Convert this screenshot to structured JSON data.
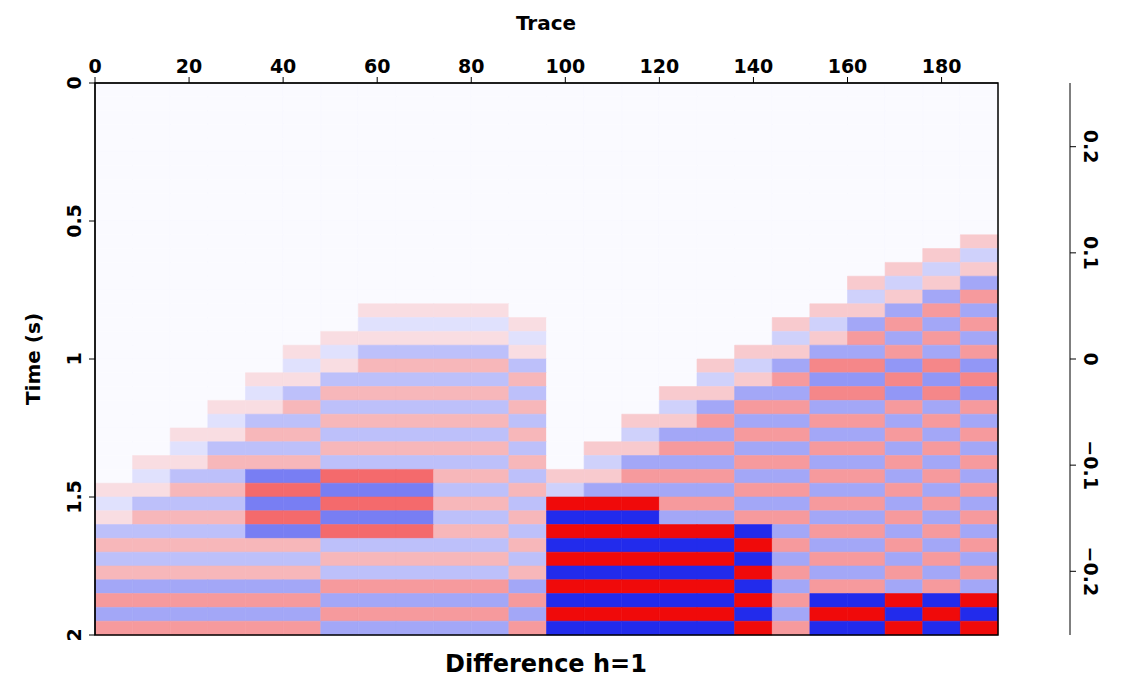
{
  "chart_data": {
    "type": "heatmap",
    "title": "Difference h=1",
    "xlabel": "Trace",
    "ylabel": "Time (s)",
    "xlim": [
      0,
      192
    ],
    "ylim": [
      0,
      2
    ],
    "xticks": [
      0,
      20,
      40,
      60,
      80,
      100,
      120,
      140,
      160,
      180
    ],
    "yticks": [
      0,
      0.5,
      1,
      1.5,
      2
    ],
    "x_bins": [
      0,
      8,
      16,
      24,
      32,
      40,
      48,
      56,
      64,
      72,
      80,
      88,
      96,
      104,
      112,
      120,
      128,
      136,
      144,
      152,
      160,
      168,
      176,
      184,
      192
    ],
    "y_bins": [
      0,
      0.05,
      0.1,
      0.15,
      0.2,
      0.25,
      0.3,
      0.35,
      0.4,
      0.45,
      0.5,
      0.55,
      0.6,
      0.65,
      0.7,
      0.75,
      0.8,
      0.85,
      0.9,
      0.95,
      1,
      1.05,
      1.1,
      1.15,
      1.2,
      1.25,
      1.3,
      1.35,
      1.4,
      1.45,
      1.5,
      1.55,
      1.6,
      1.65,
      1.7,
      1.75,
      1.8,
      1.85,
      1.9,
      1.95,
      2
    ],
    "cells": [
      [
        0,
        0,
        0,
        0,
        0,
        0,
        0,
        0,
        0,
        0,
        0,
        0,
        0,
        0,
        0,
        0,
        0,
        0,
        0,
        0,
        0,
        0,
        0,
        0
      ],
      [
        0,
        0,
        0,
        0,
        0,
        0,
        0,
        0,
        0,
        0,
        0,
        0,
        0,
        0,
        0,
        0,
        0,
        0,
        0,
        0,
        0,
        0,
        0,
        0
      ],
      [
        0,
        0,
        0,
        0,
        0,
        0,
        0,
        0,
        0,
        0,
        0,
        0,
        0,
        0,
        0,
        0,
        0,
        0,
        0,
        0,
        0,
        0,
        0,
        0
      ],
      [
        0,
        0,
        0,
        0,
        0,
        0,
        0,
        0,
        0,
        0,
        0,
        0,
        0,
        0,
        0,
        0,
        0,
        0,
        0,
        0,
        0,
        0,
        0,
        0
      ],
      [
        0,
        0,
        0,
        0,
        0,
        0,
        0,
        0,
        0,
        0,
        0,
        0,
        0,
        0,
        0,
        0,
        0,
        0,
        0,
        0,
        0,
        0,
        0,
        0
      ],
      [
        0,
        0,
        0,
        0,
        0,
        0,
        0,
        0,
        0,
        0,
        0,
        0,
        0,
        0,
        0,
        0,
        0,
        0,
        0,
        0,
        0,
        0,
        0,
        0
      ],
      [
        0,
        0,
        0,
        0,
        0,
        0,
        0,
        0,
        0,
        0,
        0,
        0,
        0,
        0,
        0,
        0,
        0,
        0,
        0,
        0,
        0,
        0,
        0,
        0
      ],
      [
        0,
        0,
        0,
        0,
        0,
        0,
        0,
        0,
        0,
        0,
        0,
        0,
        0,
        0,
        0,
        0,
        0,
        0,
        0,
        0,
        0,
        0,
        0,
        0
      ],
      [
        0,
        0,
        0,
        0,
        0,
        0,
        0,
        0,
        0,
        0,
        0,
        0,
        0,
        0,
        0,
        0,
        0,
        0,
        0,
        0,
        0,
        0,
        0,
        0
      ],
      [
        0,
        0,
        0,
        0,
        0,
        0,
        0,
        0,
        0,
        0,
        0,
        0,
        0,
        0,
        0,
        0,
        0,
        0,
        0,
        0,
        0,
        0,
        0,
        0
      ],
      [
        0,
        0,
        0,
        0,
        0,
        0,
        0,
        0,
        0,
        0,
        0,
        0,
        0,
        0,
        0,
        0,
        0,
        0,
        0,
        0,
        0,
        0,
        0,
        0
      ],
      [
        0,
        0,
        0,
        0,
        0,
        0,
        0,
        0,
        0,
        0,
        0,
        0,
        0,
        0,
        0,
        0,
        0,
        0,
        0,
        0,
        0,
        0,
        0,
        -0.05
      ],
      [
        0,
        0,
        0,
        0,
        0,
        0,
        0,
        0,
        0,
        0,
        0,
        0,
        0,
        0,
        0,
        0,
        0,
        0,
        0,
        0,
        0,
        0,
        -0.05,
        0.05
      ],
      [
        0,
        0,
        0,
        0,
        0,
        0,
        0,
        0,
        0,
        0,
        0,
        0,
        0,
        0,
        0,
        0,
        0,
        0,
        0,
        0,
        0,
        -0.05,
        0.05,
        -0.05
      ],
      [
        0,
        0,
        0,
        0,
        0,
        0,
        0,
        0,
        0,
        0,
        0,
        0,
        0,
        0,
        0,
        0,
        0,
        0,
        0,
        0,
        -0.05,
        0.05,
        -0.05,
        0.1
      ],
      [
        0,
        0,
        0,
        0,
        0,
        0,
        0,
        0,
        0,
        0,
        0,
        0,
        0,
        0,
        0,
        0,
        0,
        0,
        0,
        0,
        0.05,
        -0.05,
        0.1,
        -0.1
      ],
      [
        0,
        0,
        0,
        0,
        0,
        0,
        0,
        -0.03,
        -0.03,
        -0.03,
        -0.03,
        0,
        0,
        0,
        0,
        0,
        0,
        0,
        0,
        -0.05,
        -0.05,
        0.1,
        -0.1,
        0.1
      ],
      [
        0,
        0,
        0,
        0,
        0,
        0,
        0,
        0.03,
        0.03,
        0.03,
        0.03,
        -0.03,
        0,
        0,
        0,
        0,
        0,
        0,
        -0.05,
        0.05,
        0.1,
        -0.1,
        0.1,
        -0.1
      ],
      [
        0,
        0,
        0,
        0,
        0,
        0,
        -0.03,
        -0.03,
        -0.03,
        -0.03,
        -0.03,
        0.03,
        0,
        0,
        0,
        0,
        0,
        0,
        0.05,
        -0.05,
        -0.1,
        0.1,
        -0.1,
        0.1
      ],
      [
        0,
        0,
        0,
        0,
        0,
        -0.03,
        0.03,
        0.07,
        0.07,
        0.07,
        0.07,
        -0.03,
        0,
        0,
        0,
        0,
        0,
        -0.05,
        -0.05,
        0.1,
        0.1,
        -0.1,
        0.1,
        -0.1
      ],
      [
        0,
        0,
        0,
        0,
        0,
        0.03,
        -0.03,
        -0.07,
        -0.07,
        -0.07,
        -0.07,
        0.07,
        0,
        0,
        0,
        0,
        -0.05,
        0.05,
        0.1,
        -0.12,
        -0.12,
        0.12,
        -0.12,
        0.12
      ],
      [
        0,
        0,
        0,
        0,
        -0.03,
        -0.03,
        0.07,
        0.07,
        0.07,
        0.07,
        0.07,
        -0.07,
        0,
        0,
        0,
        0,
        0.05,
        -0.05,
        -0.1,
        0.12,
        0.12,
        -0.12,
        0.12,
        -0.12
      ],
      [
        0,
        0,
        0,
        0,
        0.03,
        0.07,
        -0.07,
        -0.07,
        -0.07,
        -0.07,
        -0.07,
        0.07,
        0,
        0,
        0,
        -0.05,
        -0.05,
        0.1,
        0.1,
        -0.12,
        -0.12,
        0.12,
        -0.12,
        0.12
      ],
      [
        0,
        0,
        0,
        -0.03,
        -0.03,
        -0.07,
        0.07,
        0.07,
        0.07,
        0.07,
        0.07,
        -0.07,
        0,
        0,
        0,
        0.05,
        0.1,
        -0.1,
        -0.1,
        0.1,
        0.1,
        -0.1,
        0.1,
        -0.1
      ],
      [
        0,
        0,
        0,
        0.03,
        0.07,
        0.07,
        -0.07,
        -0.07,
        -0.07,
        -0.07,
        -0.07,
        0.07,
        0,
        0,
        -0.05,
        -0.05,
        -0.1,
        0.1,
        0.1,
        -0.1,
        -0.1,
        0.1,
        -0.1,
        0.1
      ],
      [
        0,
        0,
        -0.03,
        -0.03,
        -0.07,
        -0.07,
        0.07,
        0.07,
        0.07,
        0.07,
        0.07,
        -0.07,
        0,
        0,
        0.05,
        0.1,
        0.1,
        -0.1,
        -0.1,
        0.1,
        0.1,
        -0.1,
        0.1,
        -0.1
      ],
      [
        0,
        0,
        0.03,
        0.07,
        0.07,
        0.07,
        -0.07,
        -0.07,
        -0.07,
        -0.07,
        -0.07,
        0.07,
        0,
        -0.05,
        -0.05,
        -0.1,
        -0.1,
        0.1,
        0.1,
        -0.1,
        -0.1,
        0.1,
        -0.1,
        0.1
      ],
      [
        0,
        -0.03,
        -0.03,
        -0.07,
        -0.07,
        -0.07,
        0.07,
        0.07,
        0.07,
        0.07,
        0.07,
        -0.07,
        0,
        0.05,
        0.1,
        0.1,
        0.1,
        -0.1,
        -0.1,
        0.1,
        0.1,
        -0.1,
        0.1,
        -0.1
      ],
      [
        0,
        0.03,
        0.07,
        0.07,
        0.15,
        0.15,
        -0.15,
        -0.15,
        -0.15,
        -0.07,
        -0.07,
        0.07,
        -0.05,
        -0.05,
        -0.1,
        -0.1,
        -0.1,
        0.1,
        0.1,
        -0.1,
        -0.1,
        0.1,
        -0.1,
        0.1
      ],
      [
        -0.03,
        -0.03,
        -0.07,
        -0.07,
        -0.15,
        -0.15,
        0.15,
        0.15,
        0.15,
        0.07,
        0.07,
        -0.07,
        0.05,
        0.1,
        0.1,
        0.1,
        0.1,
        -0.1,
        -0.1,
        0.1,
        0.1,
        -0.1,
        0.1,
        -0.1
      ],
      [
        0.03,
        0.07,
        0.07,
        0.07,
        0.15,
        0.15,
        -0.15,
        -0.15,
        -0.15,
        -0.07,
        -0.07,
        0.07,
        -0.25,
        -0.25,
        -0.25,
        -0.1,
        -0.1,
        0.1,
        0.1,
        -0.1,
        -0.1,
        0.1,
        -0.1,
        0.1
      ],
      [
        -0.03,
        -0.07,
        -0.07,
        -0.07,
        -0.15,
        -0.15,
        0.15,
        0.15,
        0.15,
        0.07,
        0.07,
        -0.07,
        0.25,
        0.25,
        0.25,
        0.1,
        0.1,
        -0.1,
        -0.1,
        0.1,
        0.1,
        -0.1,
        0.1,
        -0.1
      ],
      [
        0.07,
        0.07,
        0.07,
        0.07,
        0.15,
        0.15,
        -0.15,
        -0.15,
        -0.15,
        -0.07,
        -0.07,
        0.07,
        -0.25,
        -0.25,
        -0.25,
        -0.25,
        -0.25,
        0.25,
        0.1,
        -0.1,
        -0.1,
        0.1,
        -0.1,
        0.1
      ],
      [
        -0.07,
        -0.07,
        -0.07,
        -0.07,
        -0.07,
        -0.07,
        0.07,
        0.07,
        0.07,
        0.07,
        0.07,
        -0.07,
        0.25,
        0.25,
        0.25,
        0.25,
        0.25,
        -0.25,
        -0.1,
        0.1,
        0.1,
        -0.1,
        0.1,
        -0.1
      ],
      [
        0.07,
        0.07,
        0.07,
        0.07,
        0.07,
        0.07,
        -0.07,
        -0.07,
        -0.07,
        -0.07,
        -0.07,
        0.07,
        -0.25,
        -0.25,
        -0.25,
        -0.25,
        -0.25,
        0.25,
        0.1,
        -0.1,
        -0.1,
        0.1,
        -0.1,
        0.1
      ],
      [
        -0.07,
        -0.07,
        -0.07,
        -0.07,
        -0.07,
        -0.07,
        0.07,
        0.07,
        0.07,
        0.07,
        0.07,
        -0.07,
        0.25,
        0.25,
        0.25,
        0.25,
        0.25,
        -0.25,
        -0.1,
        0.1,
        0.1,
        -0.1,
        0.1,
        -0.1
      ],
      [
        0.1,
        0.1,
        0.1,
        0.1,
        0.1,
        0.1,
        -0.1,
        -0.1,
        -0.1,
        -0.1,
        -0.1,
        0.1,
        -0.25,
        -0.25,
        -0.25,
        -0.25,
        -0.25,
        0.25,
        0.1,
        -0.1,
        -0.1,
        0.1,
        -0.1,
        0.1
      ],
      [
        -0.1,
        -0.1,
        -0.1,
        -0.1,
        -0.1,
        -0.1,
        0.1,
        0.1,
        0.1,
        0.1,
        0.1,
        -0.1,
        0.25,
        0.25,
        0.25,
        0.25,
        0.25,
        -0.25,
        -0.1,
        0.25,
        0.25,
        -0.25,
        0.25,
        -0.25
      ],
      [
        0.1,
        0.1,
        0.1,
        0.1,
        0.1,
        0.1,
        -0.1,
        -0.1,
        -0.1,
        -0.1,
        -0.1,
        0.1,
        -0.25,
        -0.25,
        -0.25,
        -0.25,
        -0.25,
        0.25,
        0.1,
        -0.25,
        -0.25,
        0.25,
        -0.25,
        0.25
      ],
      [
        -0.1,
        -0.1,
        -0.1,
        -0.1,
        -0.1,
        -0.1,
        0.1,
        0.1,
        0.1,
        0.1,
        0.1,
        -0.1,
        0.25,
        0.25,
        0.25,
        0.25,
        0.25,
        -0.25,
        -0.1,
        0.25,
        0.25,
        -0.25,
        0.25,
        -0.25
      ]
    ],
    "colorbar": {
      "range": [
        -0.26,
        0.26
      ],
      "ticks": [
        {
          "value": -0.2,
          "label": "−0.2"
        },
        {
          "value": -0.1,
          "label": "−0.1"
        },
        0,
        0.1,
        0.2
      ]
    }
  }
}
